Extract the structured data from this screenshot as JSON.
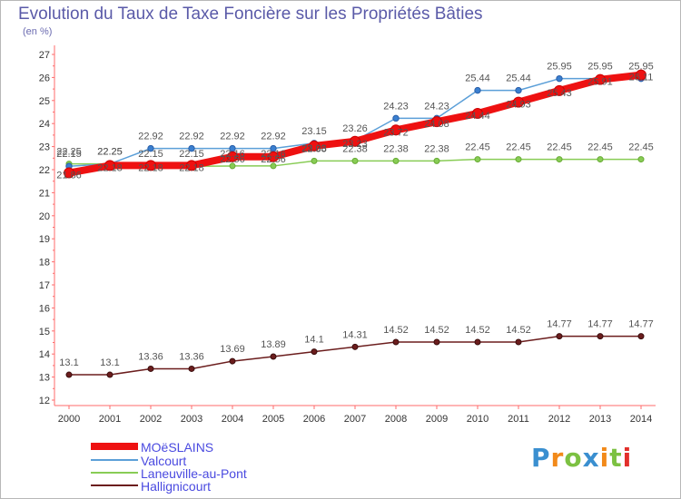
{
  "title": "Evolution du Taux de Taxe Foncière sur les Propriétés Bâties",
  "unit_label": "(en %)",
  "logo": {
    "text": "Proxiti",
    "colors": [
      "#3a8fd0",
      "#f28a1a",
      "#7cc142",
      "#3a8fd0",
      "#f28a1a",
      "#7cc142",
      "#e2302b"
    ]
  },
  "chart_data": {
    "type": "line",
    "title": "Evolution du Taux de Taxe Foncière sur les Propriétés Bâties",
    "ylabel": "(en %)",
    "xlabel": "",
    "x": [
      "2000",
      "2001",
      "2002",
      "2003",
      "2004",
      "2005",
      "2006",
      "2007",
      "2008",
      "2009",
      "2010",
      "2011",
      "2012",
      "2013",
      "2014"
    ],
    "ylim": [
      12,
      27
    ],
    "yticks": [
      "12",
      "13",
      "14",
      "15",
      "16",
      "17",
      "18",
      "19",
      "20",
      "21",
      "22",
      "23",
      "24",
      "25",
      "26",
      "27"
    ],
    "grid": false,
    "legend": "bottom-left",
    "series": [
      {
        "name": "MOëSLAINS",
        "color": "#ee1111",
        "values": [
          21.86,
          22.18,
          22.18,
          22.18,
          22.56,
          22.56,
          23.03,
          23.23,
          23.72,
          24.08,
          24.44,
          24.93,
          25.43,
          25.91,
          26.11
        ],
        "labels": [
          "21.86",
          "22.18",
          "22.18",
          "22.18",
          "22.56",
          "22.56",
          "23.03",
          "23.23",
          "23.72",
          "24.08",
          "24.44",
          "24.93",
          "25.43",
          "25.91",
          "26.11"
        ]
      },
      {
        "name": "Valcourt",
        "color": "#5b9fd8",
        "values": [
          22.15,
          22.25,
          22.92,
          22.92,
          22.92,
          22.92,
          23.15,
          23.26,
          24.23,
          24.23,
          25.44,
          25.44,
          25.95,
          25.95,
          25.95
        ],
        "labels": [
          "22.15",
          "22.25",
          "22.92",
          "22.92",
          "22.92",
          "22.92",
          "23.15",
          "23.26",
          "24.23",
          "24.23",
          "25.44",
          "25.44",
          "25.95",
          "25.95",
          "25.95"
        ]
      },
      {
        "name": "Laneuville-au-Pont",
        "color": "#88cc55",
        "values": [
          22.25,
          22.25,
          22.15,
          22.15,
          22.16,
          22.16,
          22.38,
          22.38,
          22.38,
          22.38,
          22.45,
          22.45,
          22.45,
          22.45,
          22.45
        ],
        "labels": [
          "22.25",
          "22.25",
          "22.15",
          "22.15",
          "22.16",
          "22.16",
          "22.38",
          "22.38",
          "22.38",
          "22.38",
          "22.45",
          "22.45",
          "22.45",
          "22.45",
          "22.45"
        ]
      },
      {
        "name": "Hallignicourt",
        "color": "#6b1d1d",
        "values": [
          13.1,
          13.1,
          13.36,
          13.36,
          13.69,
          13.89,
          14.1,
          14.31,
          14.52,
          14.52,
          14.52,
          14.52,
          14.77,
          14.77,
          14.77
        ],
        "labels": [
          "13.1",
          "13.1",
          "13.36",
          "13.36",
          "13.69",
          "13.89",
          "14.1",
          "14.31",
          "14.52",
          "14.52",
          "14.52",
          "14.52",
          "14.77",
          "14.77",
          "14.77"
        ]
      }
    ]
  }
}
